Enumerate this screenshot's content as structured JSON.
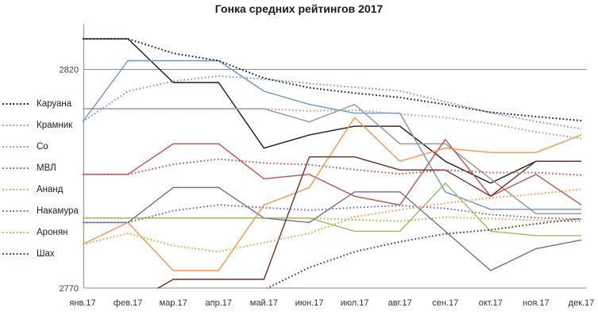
{
  "title": "Гонка средних рейтингов 2017",
  "colors": {
    "grid": "#8c8c8c",
    "axis_text": "#404040",
    "x_label_text": "#333333",
    "title_text": "#1a1a1a"
  },
  "y_axis": {
    "ticks": [
      {
        "label": "2820",
        "value": 2820
      },
      {
        "label": "2770",
        "value": 2770
      }
    ],
    "min_clip": 2770
  },
  "x_axis": {
    "labels": [
      "янв.17",
      "фев.17",
      "мар.17",
      "апр.17",
      "май.17",
      "июн.17",
      "июл.17",
      "авг.17",
      "сен.17",
      "окт.17",
      "ноя.17",
      "дек.17"
    ]
  },
  "chart_data": {
    "type": "line",
    "x": [
      "янв.17",
      "фев.17",
      "мар.17",
      "апр.17",
      "май.17",
      "июн.17",
      "июл.17",
      "авг.17",
      "сен.17",
      "окт.17",
      "ноя.17",
      "дек.17"
    ],
    "ylim": [
      2770,
      2830
    ],
    "grid": "horizontal-only",
    "legend_position": "left",
    "note_solid": "monthly rating",
    "note_dotted": "year-to-date average rating (legend shows dotted style)",
    "series": [
      {
        "id": "caruana",
        "name": "Каруана",
        "color": "#1a1a1a",
        "color_dotted": "#262626",
        "monthly": [
          2827,
          2827,
          2817,
          2817,
          2802,
          2805,
          2807,
          2807,
          2799,
          2794,
          2799,
          2799
        ],
        "average": [
          2827,
          2827,
          2823.7,
          2822,
          2818,
          2815.8,
          2814.6,
          2813.6,
          2812,
          2810.2,
          2809.2,
          2808.3
        ]
      },
      {
        "id": "kramnik",
        "name": "Крамник",
        "color": "#949494",
        "color_dotted": "#a9a9a9",
        "monthly": [
          2811,
          2811,
          2811,
          2811,
          2811,
          2808,
          2812,
          2803,
          2803,
          2795,
          2787,
          2787
        ],
        "average": [
          2811,
          2811,
          2811,
          2811,
          2811,
          2810.5,
          2810.7,
          2809.8,
          2809,
          2807.6,
          2805.7,
          2804.2
        ]
      },
      {
        "id": "so",
        "name": "Со",
        "color": "#6b96c8",
        "color_dotted": "#7da4d8",
        "monthly": [
          2808,
          2822,
          2822,
          2822,
          2815,
          2812,
          2810,
          2810,
          2792,
          2788,
          2788,
          2788
        ],
        "average": [
          2808,
          2815,
          2817.3,
          2818.5,
          2817.8,
          2816.8,
          2815.9,
          2815.1,
          2812.6,
          2810.1,
          2808.1,
          2806.4
        ]
      },
      {
        "id": "mvl",
        "name": "МВЛ",
        "color": "#c0504d",
        "color_dotted": "#c9615c",
        "monthly": [
          2796,
          2796,
          2803,
          2803,
          2795,
          2796,
          2791,
          2789,
          2804,
          2791,
          2796,
          2789
        ],
        "average": [
          2796,
          2796,
          2798.3,
          2799.5,
          2798.6,
          2798.2,
          2797.1,
          2796.1,
          2797,
          2796.4,
          2796.4,
          2795.8
        ]
      },
      {
        "id": "anand",
        "name": "Ананд",
        "color": "#9bbb59",
        "color_dotted": "#a3c162",
        "monthly": [
          2786,
          2786,
          2786,
          2786,
          2786,
          2786,
          2783,
          2783,
          2794,
          2783,
          2782,
          2782
        ],
        "average": [
          2786,
          2786,
          2786,
          2786,
          2786,
          2786,
          2785.6,
          2785.3,
          2786.2,
          2785.9,
          2785.5,
          2785.2
        ]
      },
      {
        "id": "nakamura",
        "name": "Накамура",
        "color": "#8064a2",
        "color_dotted": "#8a70ab",
        "monthly": [
          2785,
          2785,
          2793,
          2793,
          2786,
          2785,
          2792,
          2792,
          2783,
          2774,
          2779,
          2781
        ],
        "average": [
          2785,
          2785,
          2787.7,
          2789,
          2788.4,
          2787.8,
          2788.4,
          2788.9,
          2788.2,
          2786.8,
          2786.1,
          2785.7
        ]
      },
      {
        "id": "aronian",
        "name": "Аронян",
        "color": "#f79646",
        "color_dotted": "#f9a254",
        "monthly": [
          2780,
          2785,
          2774,
          2774,
          2789,
          2793,
          2809,
          2799,
          2802,
          2801,
          2801,
          2805
        ],
        "average": [
          2780,
          2782.5,
          2779.7,
          2778.3,
          2780.4,
          2782.5,
          2786.3,
          2787.9,
          2789.4,
          2790.6,
          2791.5,
          2792.6
        ]
      },
      {
        "id": "shakh",
        "name": "Шах",
        "color": "#6f2c28",
        "color_dotted": "#7e3a35",
        "monthly": [
          2766,
          2766,
          2772,
          2772,
          2772,
          2800,
          2800,
          2797,
          2797,
          2791,
          2799,
          2799
        ],
        "average": [
          2766,
          2766,
          2768,
          2769,
          2769.6,
          2774.7,
          2778.3,
          2780.6,
          2782.4,
          2783.3,
          2784.7,
          2785.9
        ]
      }
    ]
  }
}
